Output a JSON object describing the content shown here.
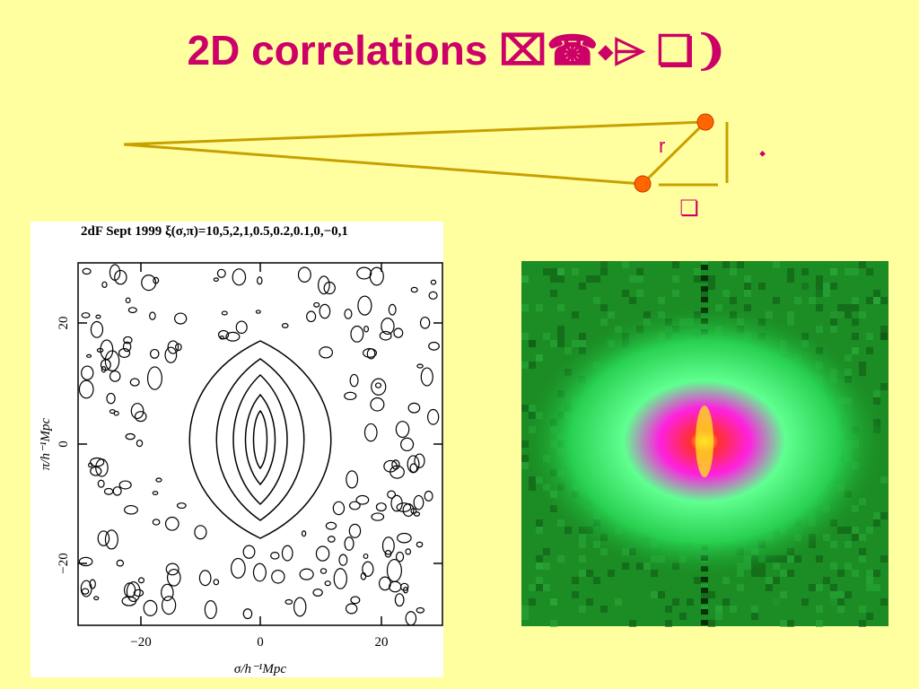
{
  "title": "2D correlations ⌧☎⬩⌲   ❏❩",
  "diagram": {
    "r_label": "r",
    "vertical_label": "⬩",
    "horizontal_label": "❏"
  },
  "left_plot": {
    "header": "2dF Sept 1999  ξ(σ,π)=10,5,2,1,0.5,0.2,0.1,0,−0,1",
    "x_ticks": [
      "−20",
      "0",
      "20"
    ],
    "y_ticks": [
      "20",
      "0",
      "−20"
    ],
    "x_label": "σ/h⁻¹Mpc",
    "y_label": "π/h⁻¹Mpc"
  }
}
